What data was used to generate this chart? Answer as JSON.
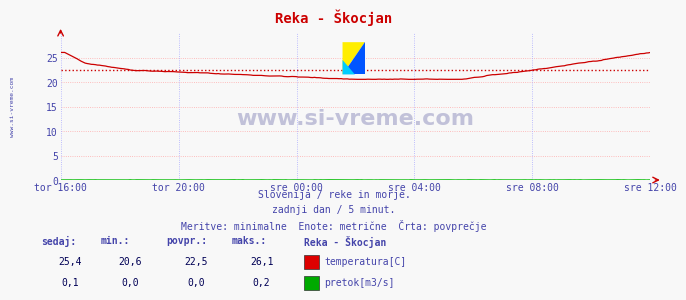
{
  "title": "Reka - Škocjan",
  "title_color": "#cc0000",
  "bg_color": "#f8f8f8",
  "plot_bg_color": "#f8f8f8",
  "grid_color_h": "#ffaaaa",
  "grid_color_v": "#aaaaff",
  "text_color": "#4444aa",
  "watermark": "www.si-vreme.com",
  "watermark_color": "#aaaacc",
  "subtitle_lines": [
    "Slovenija / reke in morje.",
    "zadnji dan / 5 minut.",
    "Meritve: minimalne  Enote: metrične  Črta: povprečje"
  ],
  "xlabel_ticks": [
    "tor 16:00",
    "tor 20:00",
    "sre 00:00",
    "sre 04:00",
    "sre 08:00",
    "sre 12:00"
  ],
  "ylabel_ticks": [
    0,
    5,
    10,
    15,
    20,
    25
  ],
  "ylim": [
    0,
    30
  ],
  "xlim_min": 0,
  "xlim_max": 288,
  "avg_line_value": 22.5,
  "avg_line_color": "#cc0000",
  "temp_line_color": "#cc0000",
  "flow_line_color": "#00bb00",
  "temp_min": 20.6,
  "temp_max": 26.1,
  "temp_avg": 22.5,
  "temp_now": 25.4,
  "flow_min": 0.0,
  "flow_max": 0.2,
  "flow_avg": 0.0,
  "flow_now": 0.1,
  "legend_title": "Reka - Škocjan",
  "legend_items": [
    {
      "label": "temperatura[C]",
      "color": "#dd0000"
    },
    {
      "label": "pretok[m3/s]",
      "color": "#00aa00"
    }
  ],
  "table_headers": [
    "sedaj:",
    "min.:",
    "povpr.:",
    "maks.:"
  ],
  "table_rows": [
    [
      "25,4",
      "20,6",
      "22,5",
      "26,1"
    ],
    [
      "0,1",
      "0,0",
      "0,0",
      "0,2"
    ]
  ],
  "left_label": "www.si-vreme.com",
  "n_points": 289
}
